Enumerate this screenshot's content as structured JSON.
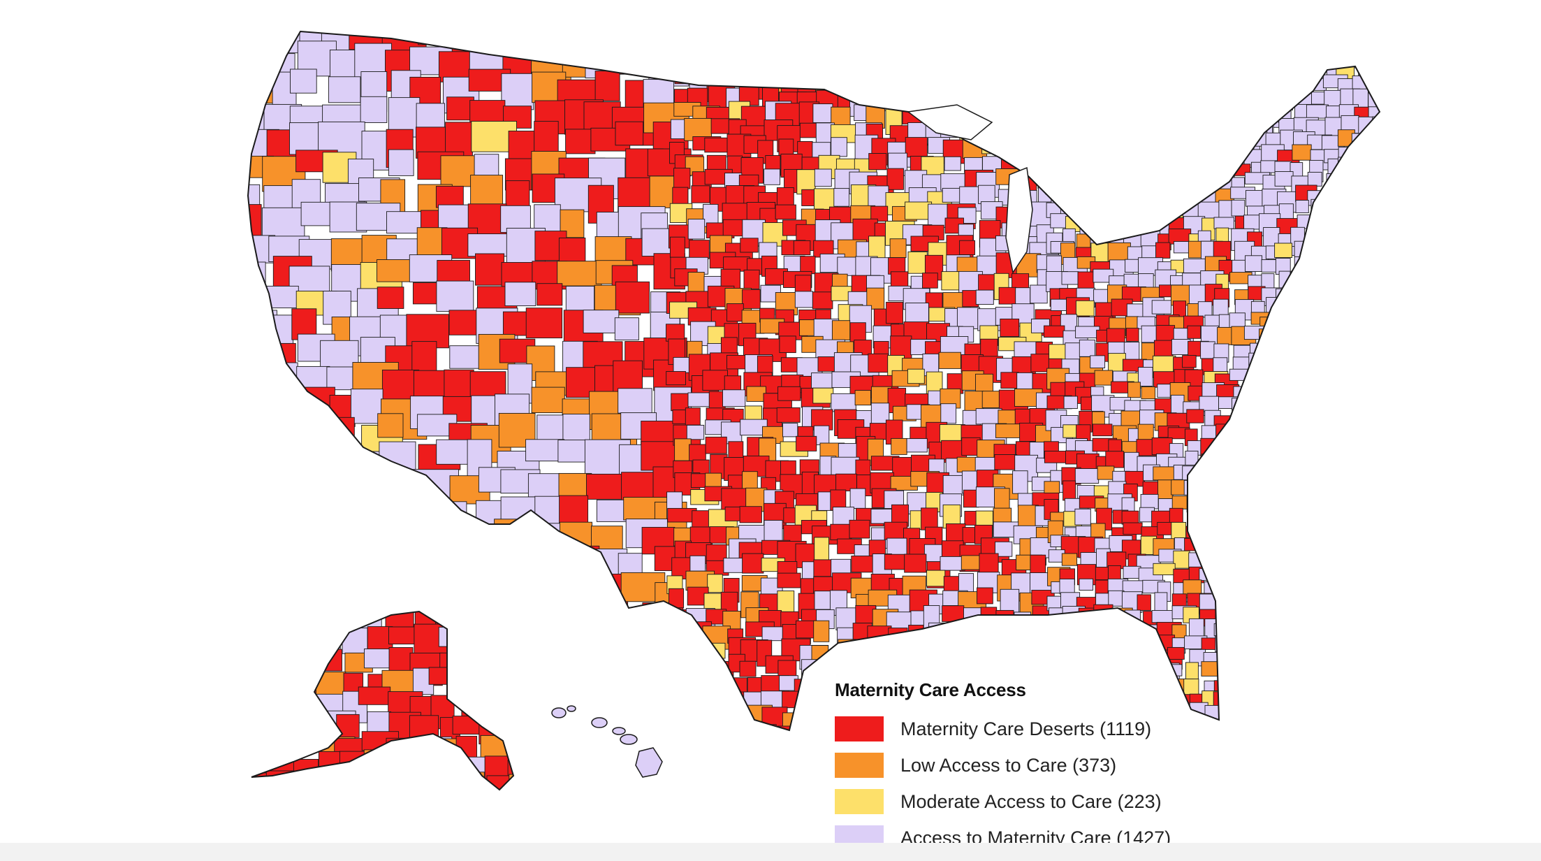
{
  "map": {
    "region": "United States counties",
    "legend": {
      "title": "Maternity Care Access",
      "items": [
        {
          "label": "Maternity Care Deserts (1119)",
          "color": "#ee1c1c",
          "category": "desert"
        },
        {
          "label": "Low Access to Care (373)",
          "color": "#f7922a",
          "category": "low"
        },
        {
          "label": "Moderate Access to Care (223)",
          "color": "#fde06a",
          "category": "moderate"
        },
        {
          "label": "Access to Maternity Care (1427)",
          "color": "#dccff7",
          "category": "access"
        }
      ]
    },
    "colors": {
      "desert": "#ee1c1c",
      "low": "#f7922a",
      "moderate": "#fde06a",
      "access": "#dccff7",
      "border": "#1a1a1a"
    }
  }
}
